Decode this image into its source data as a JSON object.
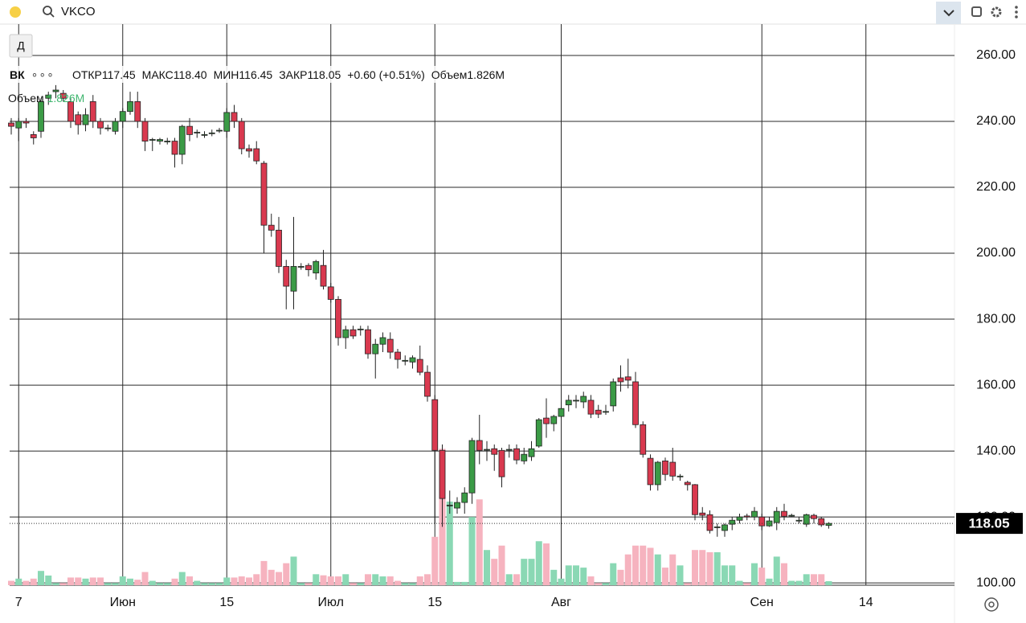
{
  "app": {
    "ticker": "VKCO"
  },
  "chart_data": {
    "type": "candlestick",
    "up_color": "#3b9b46",
    "down_color": "#d9394f",
    "volume_up_color": "#8ad8b4",
    "volume_down_color": "#f6b3bf",
    "open": [
      239.5,
      238,
      240,
      236,
      237,
      247,
      249,
      248.5,
      246,
      242,
      239,
      246,
      240,
      238,
      237,
      240,
      243,
      246,
      240,
      234.5,
      234,
      234,
      234,
      230,
      238.5,
      236.5,
      236,
      236.5,
      237.3,
      237,
      242.7,
      240,
      231.7,
      231.7,
      227.3,
      208.5,
      207,
      196,
      188.5,
      196,
      196.3,
      194,
      196.3,
      189.8,
      186,
      174.4,
      176.8,
      177,
      176.8,
      169.5,
      172.4,
      173.9,
      170,
      167.5,
      167,
      167.8,
      163.9,
      155.6,
      140.2,
      123.6,
      122.7,
      124.4,
      127.3,
      143.2,
      140.5,
      140.7,
      140.2,
      140.5,
      140.7,
      137,
      138.3,
      141.5,
      150,
      148.3,
      150.5,
      154,
      155.4,
      154.9,
      155.4,
      152.4,
      152,
      153.7,
      162.2,
      162.5,
      161,
      148,
      137.8,
      129.8,
      137,
      136.6,
      132.4,
      130.5,
      129.8,
      121.2,
      120.7,
      117,
      115.9,
      117.8,
      119,
      120.3,
      120,
      120,
      117.3,
      118.3,
      121.7,
      120.5,
      119,
      117.8,
      120.5,
      119.5,
      117.45
    ],
    "high": [
      241,
      241,
      241,
      237,
      247,
      249,
      251,
      249.5,
      247,
      243,
      244,
      248,
      241,
      239,
      241,
      244,
      249,
      249,
      241,
      235,
      235,
      235,
      235,
      239,
      241,
      237.5,
      237,
      237.5,
      238,
      244,
      245,
      241,
      233,
      234,
      228,
      212,
      211,
      198,
      211,
      197,
      197,
      198,
      201,
      191,
      187,
      178,
      178,
      178,
      178,
      174,
      176,
      176,
      171,
      169,
      169,
      172,
      166,
      157,
      142,
      128,
      126,
      129,
      144,
      151,
      143,
      142,
      141,
      142,
      142,
      141,
      143,
      150,
      156,
      151,
      155,
      157,
      157,
      158,
      157,
      154,
      154,
      162,
      166,
      168,
      164,
      149,
      139,
      137,
      138,
      141,
      133,
      131,
      130,
      123,
      122,
      118,
      118,
      120,
      121,
      121,
      123,
      121,
      120,
      123,
      124,
      121,
      120,
      121,
      121,
      120,
      118.4
    ],
    "low": [
      236,
      234,
      238,
      233,
      235,
      245,
      247,
      246,
      238,
      236,
      237,
      238,
      236,
      237,
      236,
      238,
      242,
      238,
      231,
      231,
      233,
      233,
      226,
      227,
      234,
      235,
      235,
      235.5,
      236.5,
      235,
      238,
      230,
      229,
      227,
      200,
      205,
      194,
      183,
      183,
      195,
      193,
      192,
      189,
      185,
      172,
      171,
      174,
      175,
      168,
      162,
      170,
      168,
      165,
      166,
      165,
      163,
      155,
      118,
      117,
      121,
      121,
      121,
      124,
      136,
      137,
      134,
      129,
      138,
      136,
      136,
      137,
      141,
      144,
      146,
      150,
      152,
      153,
      153,
      150,
      150,
      151,
      152,
      158,
      159,
      147,
      138,
      128,
      128,
      131,
      131,
      131,
      128,
      119,
      119,
      115,
      114,
      114,
      116,
      118,
      119,
      119,
      116,
      117,
      116,
      119,
      120,
      118,
      117,
      118,
      117,
      116.45
    ],
    "close": [
      238.5,
      240,
      239.5,
      235,
      246,
      248,
      249.5,
      247,
      240,
      239,
      242,
      240,
      238,
      238,
      240,
      243,
      246,
      240,
      234,
      234.5,
      234.5,
      234,
      230,
      238.5,
      236,
      236.7,
      236,
      236.5,
      237.3,
      242.7,
      240,
      231.7,
      231,
      228,
      208.5,
      207,
      196,
      190,
      196,
      196,
      195,
      197.5,
      190,
      186,
      174.4,
      176.8,
      174.9,
      177,
      169.5,
      172.4,
      174.4,
      170,
      167.8,
      167.5,
      168.3,
      163.9,
      156.6,
      140.2,
      125.6,
      123.6,
      124.4,
      127.3,
      143.2,
      140.2,
      140.5,
      139,
      132.2,
      140.5,
      137.3,
      139,
      140.7,
      149.5,
      148.3,
      150.5,
      152.9,
      155.4,
      155.4,
      156.6,
      151.2,
      151.2,
      152,
      161,
      161,
      161.5,
      148,
      139,
      129.8,
      136.6,
      132.9,
      132.4,
      132.4,
      129.8,
      120.7,
      120.5,
      115.9,
      117,
      117.6,
      119,
      120,
      120,
      121.7,
      117.3,
      118.8,
      121.7,
      120.2,
      120.5,
      119,
      120.7,
      119.5,
      117.6,
      118.05
    ],
    "volume": [
      2,
      3,
      2,
      3,
      6.5,
      4.4,
      1,
      1,
      3.5,
      3.5,
      3,
      3.5,
      3.5,
      1,
      1,
      4,
      3,
      2.5,
      6,
      2,
      1,
      1,
      3,
      6,
      4,
      2,
      1,
      1,
      1,
      3.5,
      3.5,
      4,
      3.5,
      5,
      11,
      7,
      6,
      10,
      13,
      1,
      1,
      5,
      4.5,
      4,
      4,
      5,
      1,
      1,
      5,
      5,
      4,
      4,
      2,
      1,
      1,
      4,
      5,
      22,
      62,
      38,
      1.5,
      1.5,
      31,
      39,
      16,
      12,
      18,
      5,
      5,
      12,
      12,
      20,
      19,
      7,
      3,
      9,
      9,
      8,
      4,
      1,
      1,
      10,
      7,
      14,
      18,
      18,
      17,
      14,
      8,
      14,
      9,
      1,
      16,
      16,
      15,
      15,
      9,
      9,
      2,
      1,
      10,
      8,
      3,
      13,
      10,
      2,
      2,
      5,
      5,
      5,
      1.826
    ],
    "ylim": [
      99.3,
      269.5
    ],
    "yticks": [
      {
        "value": 100,
        "label": "100.00"
      },
      {
        "value": 120,
        "label": "120.00"
      },
      {
        "value": 140,
        "label": "140.00"
      },
      {
        "value": 160,
        "label": "160.00"
      },
      {
        "value": 180,
        "label": "180.00"
      },
      {
        "value": 200,
        "label": "200.00"
      },
      {
        "value": 220,
        "label": "220.00"
      },
      {
        "value": 240,
        "label": "240.00"
      },
      {
        "value": 260,
        "label": "260.00"
      }
    ],
    "y2lim": [
      0,
      255
    ],
    "xticks": [
      {
        "value": 1,
        "label": "7"
      },
      {
        "value": 15,
        "label": "Июн"
      },
      {
        "value": 29,
        "label": "15"
      },
      {
        "value": 43,
        "label": "Июл"
      },
      {
        "value": 57,
        "label": "15"
      },
      {
        "value": 74,
        "label": "Авг"
      },
      {
        "value": 101,
        "label": "Сен"
      },
      {
        "value": 115,
        "label": "14"
      }
    ],
    "grid": true,
    "current_price": 118.05,
    "interval": "Д",
    "legend": {
      "symbol": "ВК",
      "items": [
        {
          "label": "ОТКР",
          "value": "117.45"
        },
        {
          "label": "МАКС",
          "value": "118.40"
        },
        {
          "label": "МИН",
          "value": "116.45"
        },
        {
          "label": "ЗАКР",
          "value": "118.05"
        }
      ],
      "change": "+0.60 (+0.51%)",
      "volume_label": "Объем",
      "volume_value": "1.826M"
    }
  }
}
